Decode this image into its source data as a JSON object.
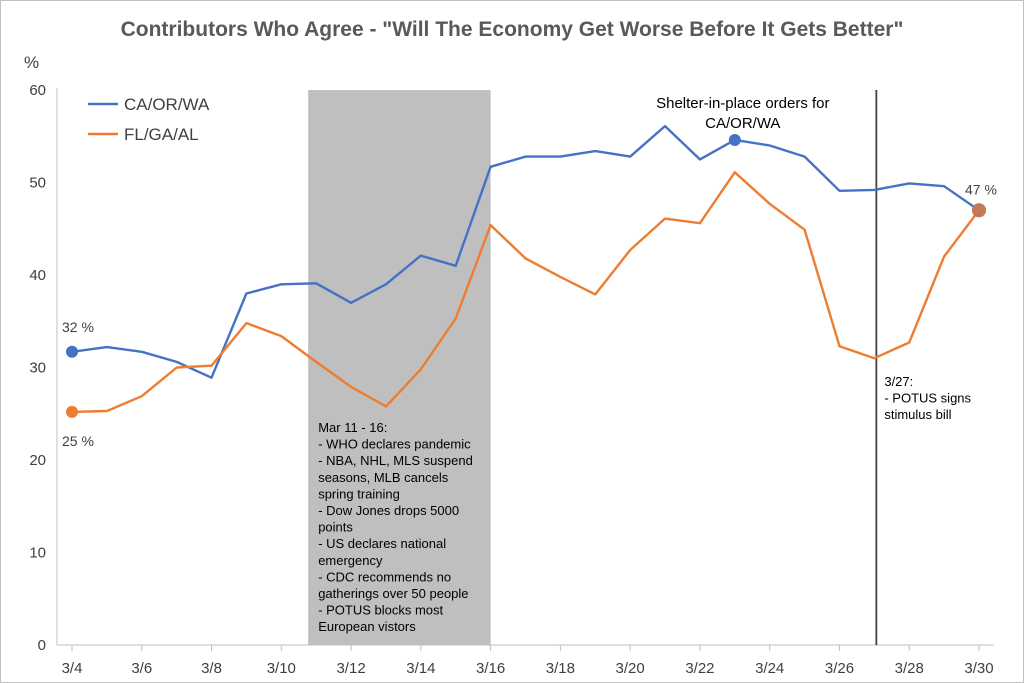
{
  "chart_data": {
    "type": "line",
    "title": "Contributors Who Agree - \"Will The Economy Get Worse Before It Gets Better\"",
    "ylabel": "%",
    "ylim": [
      0,
      60
    ],
    "yticks": [
      0,
      10,
      20,
      30,
      40,
      50,
      60
    ],
    "x": [
      "3/4",
      "3/5",
      "3/6",
      "3/7",
      "3/8",
      "3/9",
      "3/10",
      "3/11",
      "3/12",
      "3/13",
      "3/14",
      "3/15",
      "3/16",
      "3/17",
      "3/18",
      "3/19",
      "3/20",
      "3/21",
      "3/22",
      "3/23",
      "3/24",
      "3/25",
      "3/26",
      "3/27",
      "3/28",
      "3/29",
      "3/30"
    ],
    "xtick_labels": [
      "3/4",
      "3/6",
      "3/8",
      "3/10",
      "3/12",
      "3/14",
      "3/16",
      "3/18",
      "3/20",
      "3/22",
      "3/24",
      "3/26",
      "3/28",
      "3/30"
    ],
    "series": [
      {
        "name": "CA/OR/WA",
        "color": "#4472c4",
        "values": [
          31.7,
          32.2,
          31.7,
          30.6,
          28.9,
          38.0,
          39.0,
          39.1,
          37.0,
          39.0,
          42.1,
          41.0,
          51.7,
          52.8,
          52.8,
          53.4,
          52.8,
          56.1,
          52.5,
          54.6,
          54.0,
          52.8,
          49.1,
          49.2,
          49.9,
          49.6,
          47.0
        ]
      },
      {
        "name": "FL/GA/AL",
        "color": "#ed7d31",
        "values": [
          25.2,
          25.3,
          26.9,
          30.0,
          30.2,
          34.8,
          33.4,
          30.6,
          27.9,
          25.8,
          29.8,
          35.3,
          45.4,
          41.8,
          39.8,
          37.9,
          42.7,
          46.1,
          45.6,
          51.1,
          47.7,
          44.9,
          32.3,
          31.0,
          32.7,
          42.0,
          47.0
        ]
      }
    ],
    "data_labels": [
      {
        "text": "32 %"
      },
      {
        "text": "25 %"
      },
      {
        "text": "47 %"
      }
    ],
    "shaded_region": {
      "from": "3/11",
      "to": "3/16",
      "lines": [
        "Mar 11 - 16:",
        "- WHO declares pandemic",
        "- NBA, NHL, MLS suspend",
        "seasons, MLB cancels",
        "spring training",
        "- Dow Jones drops 5000",
        "points",
        "- US declares national",
        "emergency",
        "- CDC recommends no",
        "gatherings over 50 people",
        "- POTUS blocks most",
        "European vistors"
      ]
    },
    "vertical_line": {
      "at": "3/27",
      "lines": [
        "3/27:",
        "- POTUS signs",
        " stimulus bill"
      ]
    },
    "point_annotation": {
      "at": "3/23",
      "series": "CA/OR/WA",
      "lines": [
        "Shelter-in-place orders for",
        "CA/OR/WA"
      ]
    },
    "legend": "top-left",
    "grid": false
  }
}
